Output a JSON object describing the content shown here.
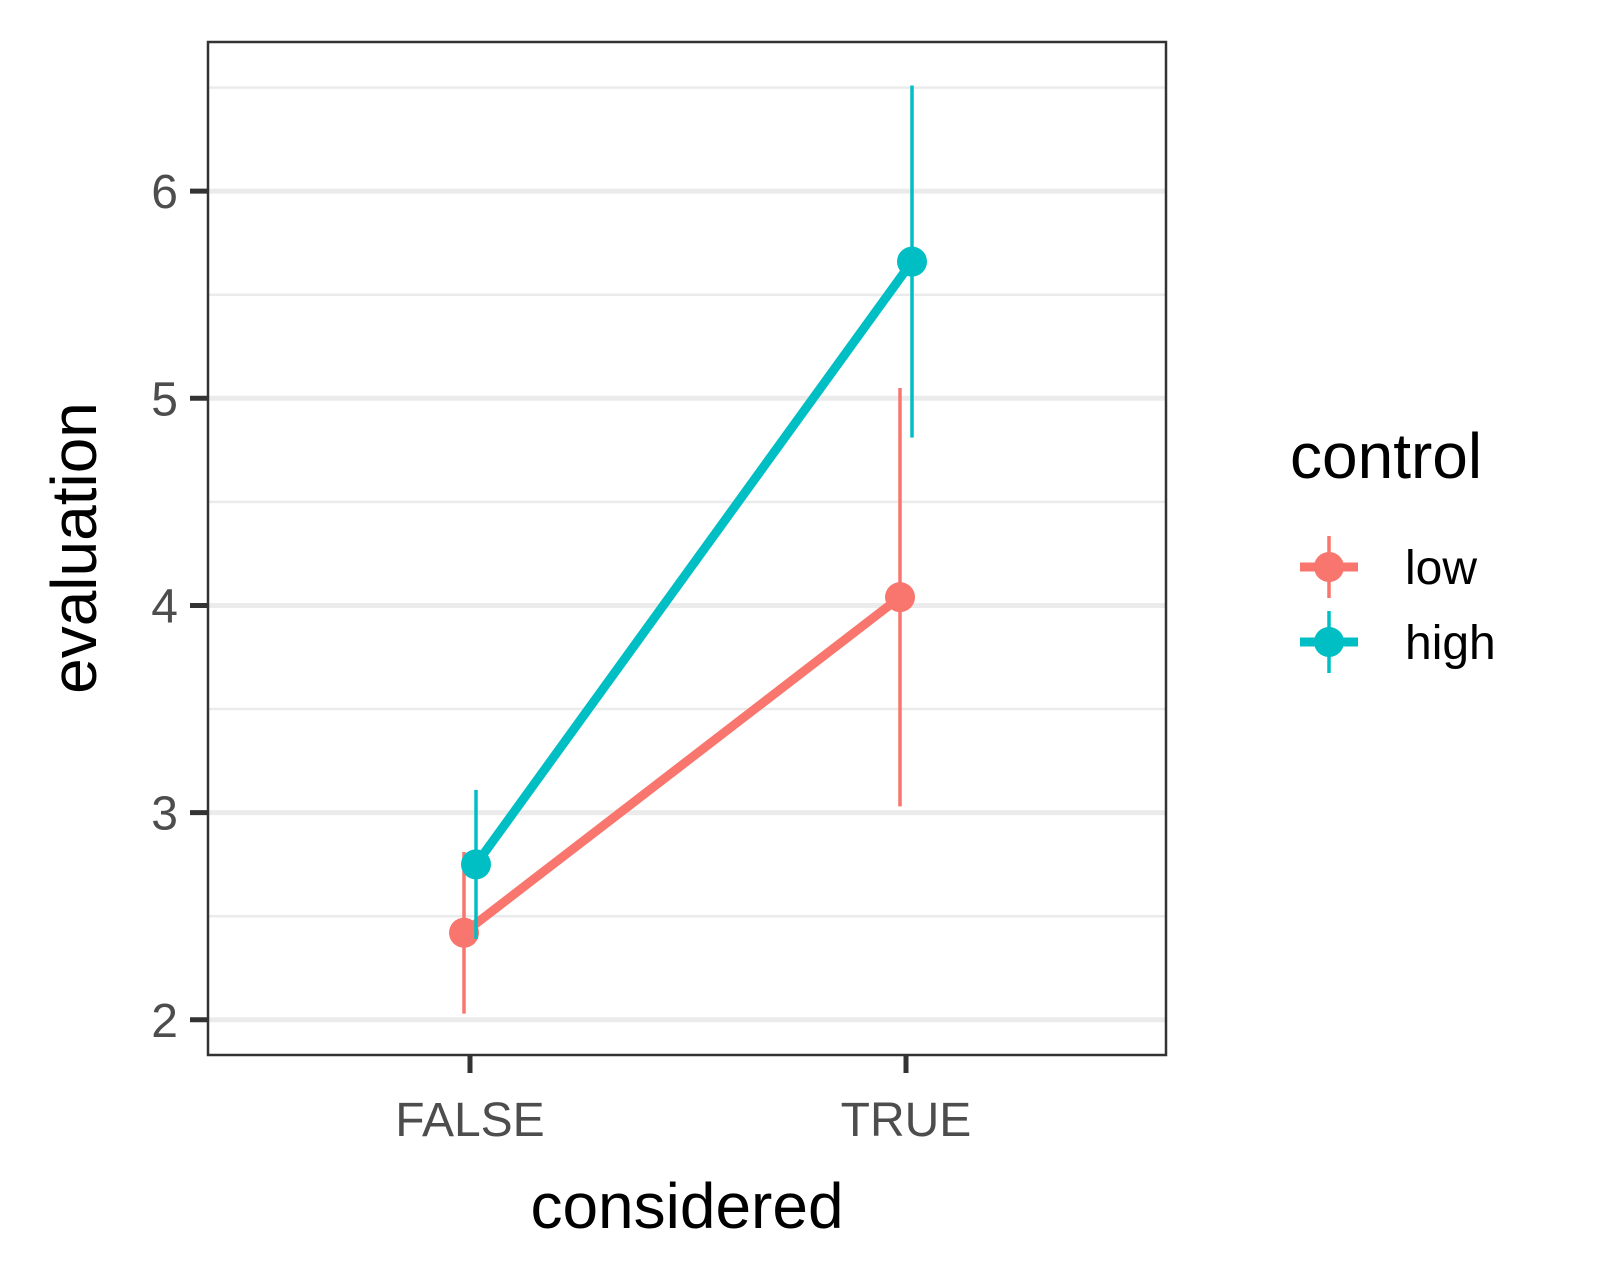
{
  "chart_data": {
    "type": "line",
    "title": "",
    "xlabel": "considered",
    "ylabel": "evaluation",
    "categories": [
      "FALSE",
      "TRUE"
    ],
    "ylim": [
      1.83,
      6.72
    ],
    "yticks": [
      2,
      3,
      4,
      5,
      6
    ],
    "grid": true,
    "legend": {
      "title": "control",
      "position": "right"
    },
    "series": [
      {
        "name": "low",
        "color": "#F8766D",
        "values": [
          2.42,
          4.04
        ],
        "error_low": [
          2.03,
          3.03
        ],
        "error_high": [
          2.81,
          5.05
        ]
      },
      {
        "name": "high",
        "color": "#00BFC4",
        "values": [
          2.75,
          5.66
        ],
        "error_low": [
          2.39,
          4.81
        ],
        "error_high": [
          3.11,
          6.51
        ]
      }
    ]
  }
}
